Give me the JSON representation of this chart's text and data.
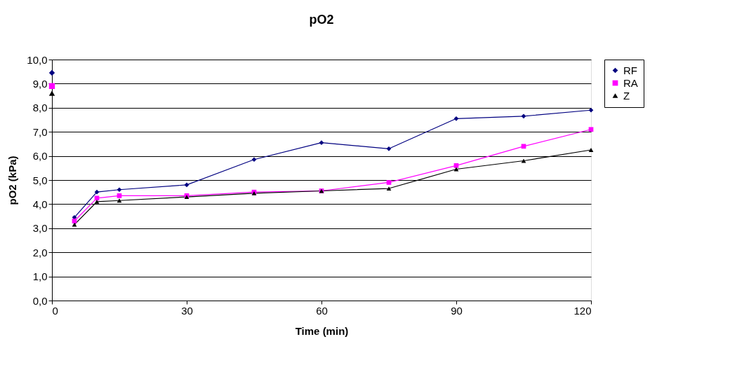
{
  "chart_data": {
    "type": "line",
    "title": "pO2",
    "xlabel": "Time (min)",
    "ylabel": "pO2 (kPa)",
    "xlim": [
      0,
      120
    ],
    "xticks": [
      0,
      30,
      60,
      90,
      120
    ],
    "ylim": [
      0,
      10
    ],
    "yticks": [
      {
        "value": 0,
        "label": "0,0"
      },
      {
        "value": 1,
        "label": "1,0"
      },
      {
        "value": 2,
        "label": "2,0"
      },
      {
        "value": 3,
        "label": "3,0"
      },
      {
        "value": 4,
        "label": "4,0"
      },
      {
        "value": 5,
        "label": "5,0"
      },
      {
        "value": 6,
        "label": "6,0"
      },
      {
        "value": 7,
        "label": "7,0"
      },
      {
        "value": 8,
        "label": "8,0"
      },
      {
        "value": 9,
        "label": "9,0"
      },
      {
        "value": 10,
        "label": "10,0"
      }
    ],
    "grid": "y",
    "legend": "right",
    "line_style": "solid",
    "series": [
      {
        "name": "RF",
        "type": "line",
        "marker": "diamond",
        "color": "#000080",
        "x": [
          5,
          10,
          15,
          30,
          45,
          60,
          75,
          90,
          105,
          120
        ],
        "values": [
          3.45,
          4.5,
          4.6,
          4.8,
          5.85,
          6.55,
          6.3,
          7.55,
          7.65,
          7.9
        ]
      },
      {
        "name": "RA",
        "type": "line",
        "marker": "square",
        "color": "#ff00ff",
        "x": [
          5,
          10,
          15,
          30,
          45,
          60,
          75,
          90,
          105,
          120
        ],
        "values": [
          3.3,
          4.25,
          4.35,
          4.35,
          4.5,
          4.55,
          4.9,
          5.6,
          6.4,
          7.1
        ]
      },
      {
        "name": "Z",
        "type": "line",
        "marker": "triangle",
        "color": "#000000",
        "x": [
          5,
          10,
          15,
          30,
          45,
          60,
          75,
          90,
          105,
          120
        ],
        "values": [
          3.15,
          4.1,
          4.15,
          4.3,
          4.45,
          4.55,
          4.65,
          5.45,
          5.8,
          6.25
        ]
      },
      {
        "type": "scatter",
        "marker": "diamond",
        "color": "#000080",
        "x": [
          0
        ],
        "values": [
          9.45
        ]
      },
      {
        "type": "scatter",
        "marker": "square",
        "color": "#ff00ff",
        "x": [
          0
        ],
        "values": [
          8.9
        ]
      },
      {
        "type": "scatter",
        "marker": "triangle",
        "color": "#000000",
        "x": [
          0
        ],
        "values": [
          8.6
        ]
      }
    ]
  }
}
